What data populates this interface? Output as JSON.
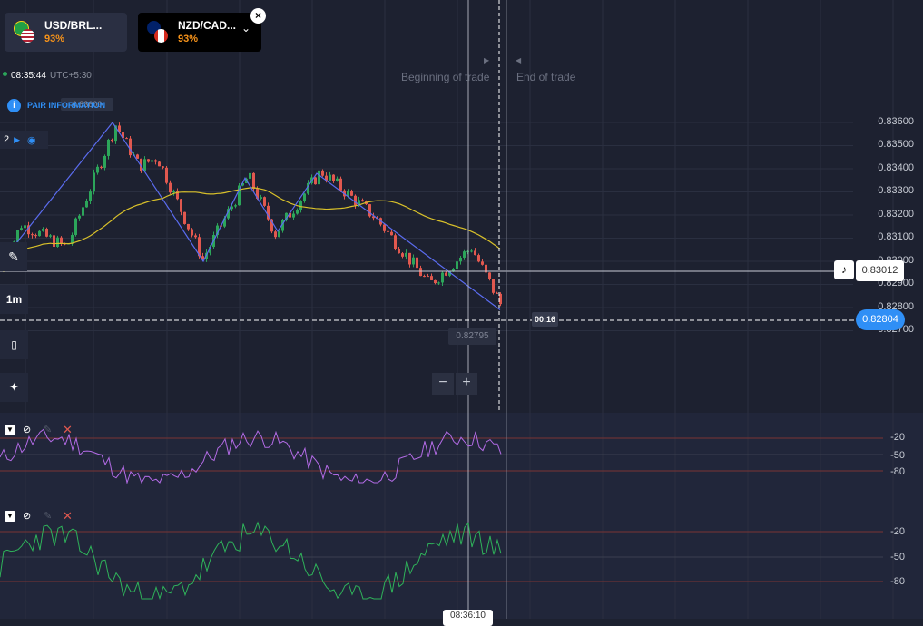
{
  "tabs": [
    {
      "name": "USD/BRL...",
      "payout": "93%",
      "active": false
    },
    {
      "name": "NZD/CAD...",
      "payout": "93%",
      "active": true
    }
  ],
  "clock": {
    "time": "08:35:44",
    "timezone": "UTC+5:30"
  },
  "pair_info_label": "PAIR INFORMATION",
  "overlay_text": "0.83600",
  "drawings_count": "2",
  "timeframe": "1m",
  "trade_labels": {
    "beginning": "Beginning of trade",
    "end": "End of trade"
  },
  "price_axis": [
    "0.83600",
    "0.83500",
    "0.83400",
    "0.83300",
    "0.83200",
    "0.83100",
    "0.83000",
    "0.82900",
    "0.82800",
    "0.82700"
  ],
  "crosshair_price": "0.83012",
  "current_price": "0.82804",
  "countdown": "00:16",
  "low_label": "0.82795",
  "bottom_time_partial": "08:36:10",
  "indicator_ticks": [
    "-20",
    "-50",
    "-80"
  ],
  "colors": {
    "bg": "#1d2130",
    "bull": "#2ca55a",
    "bear": "#e0584f",
    "ma": "#d9c12a",
    "zigzag": "#5b6cf0",
    "ind1": "#b36be6",
    "ind2": "#2fb35a",
    "accent": "#2f8ff6",
    "payout": "#f7931a"
  },
  "icons": [
    "flag-us-icon",
    "flag-br-icon",
    "flag-nz-icon",
    "flag-ca-icon",
    "close-icon",
    "chevron-down-icon",
    "info-icon",
    "play-icon",
    "eye-icon",
    "pencil-icon",
    "candles-icon",
    "tools-icon",
    "bell-icon",
    "minus-icon",
    "plus-icon",
    "hide-icon",
    "edit-icon",
    "delete-icon"
  ]
}
